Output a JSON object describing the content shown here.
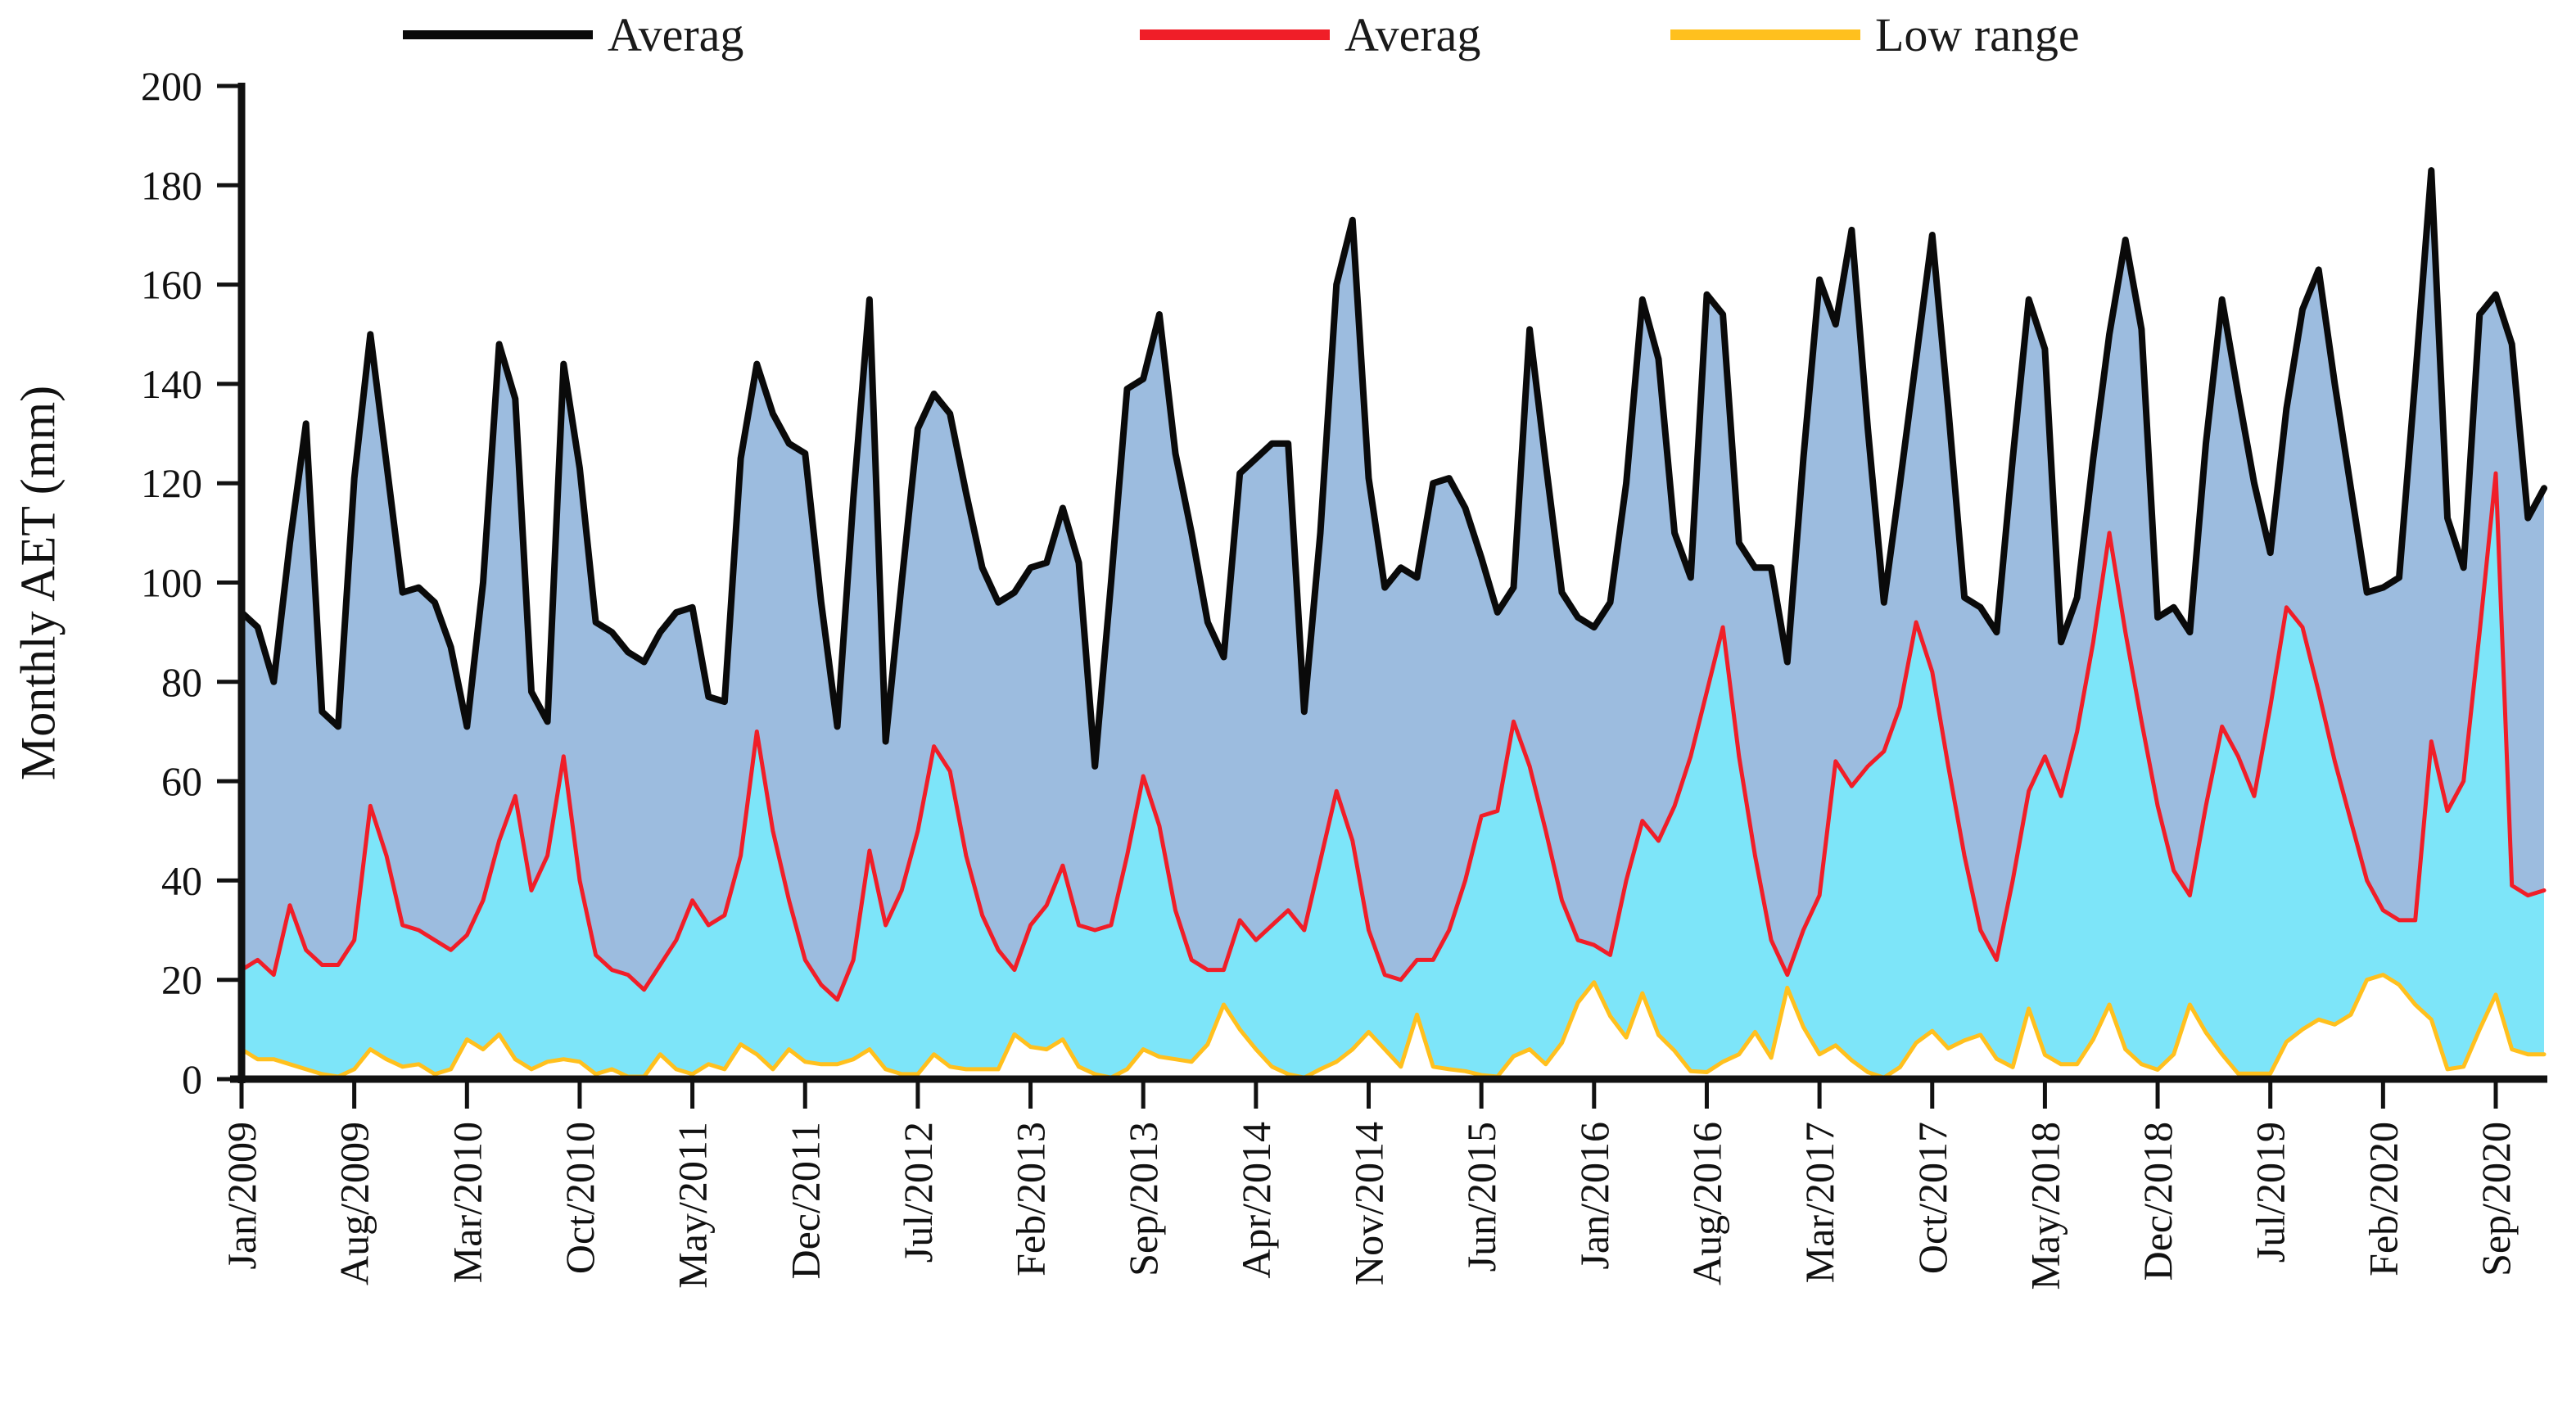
{
  "legend": {
    "items": [
      {
        "label": "Averag",
        "color": "#0a0a0a"
      },
      {
        "label": "Averag",
        "color": "#f01e28"
      },
      {
        "label": "Low range",
        "color": "#ffc01e"
      }
    ]
  },
  "axes": {
    "y_title": "Monthly AET (mm)",
    "y_ticks": [
      0,
      20,
      40,
      60,
      80,
      100,
      120,
      140,
      160,
      180,
      200
    ]
  },
  "chart_data": {
    "type": "area",
    "title": "",
    "xlabel": "",
    "ylabel": "Monthly AET (mm)",
    "ylim": [
      0,
      200
    ],
    "ytick_step": 20,
    "grid": false,
    "legend_position": "top",
    "n_points": 144,
    "x_start": "Jan/2009",
    "x_end": "Dec/2020",
    "x_tick_interval_months": 7,
    "x_tick_labels": [
      "Jan/2009",
      "Aug/2009",
      "Mar/2010",
      "Oct/2010",
      "May/2011",
      "Dec/2011",
      "Jul/2012",
      "Feb/2013",
      "Sep/2013",
      "Apr/2014",
      "Nov/2014",
      "Jun/2015",
      "Jan/2016",
      "Aug/2016",
      "Mar/2017",
      "Oct/2017",
      "May/2018",
      "Dec/2018",
      "Jul/2019",
      "Feb/2020",
      "Sep/2020"
    ],
    "series": [
      {
        "name": "Averag",
        "role": "upper-average-line",
        "line_color": "#0a0a0a",
        "fill_color": "#9cbcdf",
        "values": [
          94,
          91,
          80,
          108,
          132,
          74,
          71,
          121,
          150,
          124,
          98,
          99,
          96,
          87,
          71,
          100,
          148,
          137,
          78,
          72,
          144,
          123,
          92,
          90,
          86,
          84,
          90,
          94,
          95,
          77,
          76,
          125,
          144,
          134,
          128,
          126,
          96,
          71,
          117,
          157,
          68,
          100,
          131,
          138,
          134,
          118,
          103,
          96,
          98,
          103,
          104,
          115,
          104,
          63,
          100,
          139,
          141,
          154,
          126,
          110,
          92,
          85,
          122,
          125,
          128,
          128,
          74,
          110,
          160,
          173,
          121,
          99,
          103,
          101,
          120,
          121,
          115,
          105,
          94,
          99,
          151,
          124,
          98,
          93,
          91,
          96,
          120,
          157,
          145,
          110,
          101,
          158,
          154,
          108,
          103,
          103,
          84,
          125,
          161,
          152,
          171,
          131,
          96,
          120,
          145,
          170,
          135,
          97,
          95,
          90,
          125,
          157,
          147,
          88,
          97,
          125,
          150,
          169,
          151,
          93,
          95,
          90,
          128,
          157,
          138,
          120,
          106,
          135,
          155,
          163,
          140,
          119,
          98,
          99,
          101,
          141,
          183,
          113,
          103,
          154,
          158,
          148,
          113,
          119
        ]
      },
      {
        "name": "Averag",
        "role": "middle-average-line",
        "line_color": "#f01e28",
        "fill_color": "#7de5f9",
        "values": [
          22,
          24,
          21,
          35,
          26,
          23,
          23,
          28,
          55,
          45,
          31,
          30,
          28,
          26,
          29,
          36,
          48,
          57,
          38,
          45,
          65,
          40,
          25,
          22,
          21,
          18,
          23,
          28,
          36,
          31,
          33,
          45,
          70,
          50,
          36,
          24,
          19,
          16,
          24,
          46,
          31,
          38,
          50,
          67,
          62,
          45,
          33,
          26,
          22,
          31,
          35,
          43,
          31,
          30,
          31,
          45,
          61,
          51,
          34,
          24,
          22,
          22,
          32,
          28,
          31,
          34,
          30,
          44,
          58,
          48,
          30,
          21,
          20,
          24,
          24,
          30,
          40,
          53,
          54,
          72,
          63,
          50,
          36,
          28,
          27,
          25,
          40,
          52,
          48,
          55,
          65,
          78,
          91,
          65,
          45,
          28,
          21,
          30,
          37,
          64,
          59,
          63,
          66,
          75,
          92,
          82,
          63,
          45,
          30,
          24,
          40,
          58,
          65,
          57,
          70,
          88,
          110,
          90,
          72,
          55,
          42,
          37,
          55,
          71,
          65,
          57,
          75,
          95,
          91,
          78,
          64,
          52,
          40,
          34,
          32,
          32,
          68,
          54,
          60,
          90,
          122,
          39,
          37,
          38
        ]
      },
      {
        "name": "Low range",
        "role": "low-range-line",
        "line_color": "#ffc01e",
        "fill_color": "#ffffff",
        "values": [
          6,
          4,
          4,
          3,
          2,
          1,
          0.5,
          2,
          6,
          4,
          2.5,
          3,
          1,
          2,
          8,
          6,
          9,
          4,
          2,
          3.5,
          4,
          3.5,
          1,
          2,
          0.5,
          0.5,
          5,
          2,
          1,
          3,
          2,
          7,
          5,
          2,
          6,
          3.5,
          3,
          3,
          4,
          6,
          2,
          1,
          1,
          5,
          2.5,
          2,
          2,
          2,
          9,
          6.5,
          6,
          8,
          2.5,
          1,
          0.3,
          2,
          6,
          4.5,
          4,
          3.5,
          7,
          15,
          10,
          6,
          2.5,
          1,
          0.3,
          2,
          3.5,
          6,
          9.5,
          6,
          2.5,
          13,
          2.5,
          2,
          1.6,
          0.8,
          0.5,
          4.6,
          6,
          3,
          7.3,
          15.4,
          19.5,
          12.7,
          8.4,
          17.3,
          8.9,
          5.7,
          1.6,
          1.4,
          3.5,
          5,
          9.5,
          4.3,
          18.4,
          10.5,
          5,
          6.8,
          3.8,
          1.4,
          0.3,
          2.4,
          7.3,
          9.7,
          6.2,
          7.8,
          8.9,
          4.1,
          2.4,
          14.2,
          4.9,
          3,
          3,
          8,
          15,
          6,
          3,
          1.9,
          5,
          15,
          9.4,
          5,
          1.1,
          1.1,
          1.1,
          7.5,
          10,
          12,
          11,
          13,
          20,
          21,
          19,
          15,
          12,
          2,
          2.5,
          10,
          17,
          6,
          5,
          5
        ]
      }
    ]
  }
}
